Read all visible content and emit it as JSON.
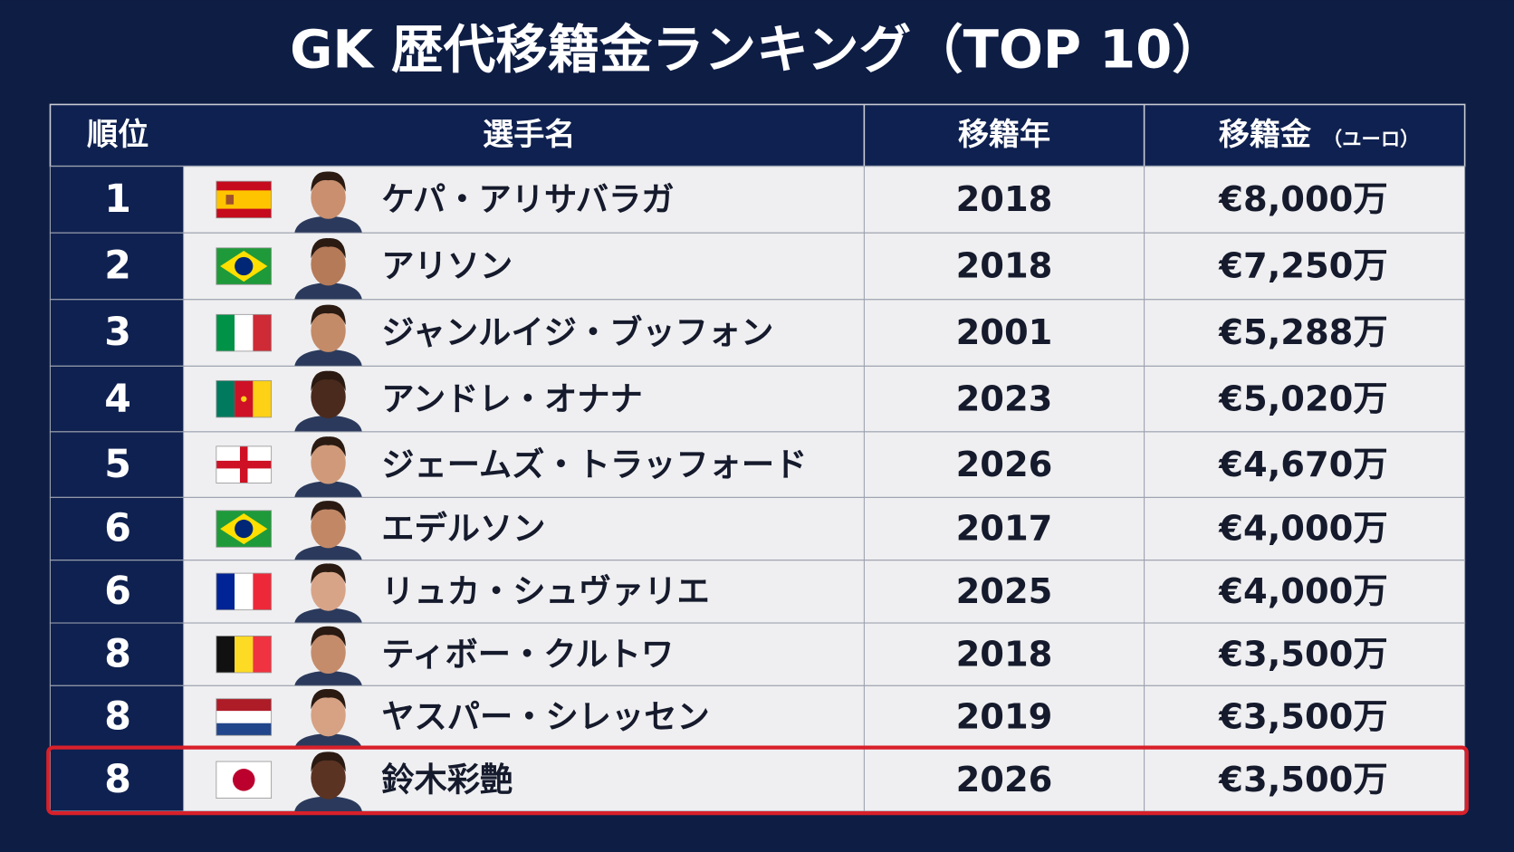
{
  "title": "GK 歴代移籍金ランキング（TOP 10）",
  "header": [
    "順位",
    "選手名",
    "移籍年",
    "移籍金"
  ],
  "header_unit": "（ユーロ）",
  "rows": [
    [
      "1",
      "ケパ・アリサバラガ",
      "2018",
      "€8,000万"
    ],
    [
      "2",
      "アリソン",
      "2018",
      "€7,250万"
    ],
    [
      "3",
      "ジャンルイジ・ブッフォン",
      "2001",
      "€5,288万"
    ],
    [
      "4",
      "アンドレ・オナナ",
      "2023",
      "€5,020万"
    ],
    [
      "5",
      "ジェームズ・トラッフォード",
      "2026",
      "€4,670万"
    ],
    [
      "6",
      "エデルソン",
      "2017",
      "€4,000万"
    ],
    [
      "6",
      "リュカ・シュヴァリエ",
      "2025",
      "€4,000万"
    ],
    [
      "8",
      "ティボー・クルトワ",
      "2018",
      "€3,500万"
    ],
    [
      "8",
      "ヤスパー・シレッセン",
      "2019",
      "€3,500万"
    ],
    [
      "8",
      "鈴木彩艶",
      "2026",
      "€3,500万"
    ]
  ]
}
